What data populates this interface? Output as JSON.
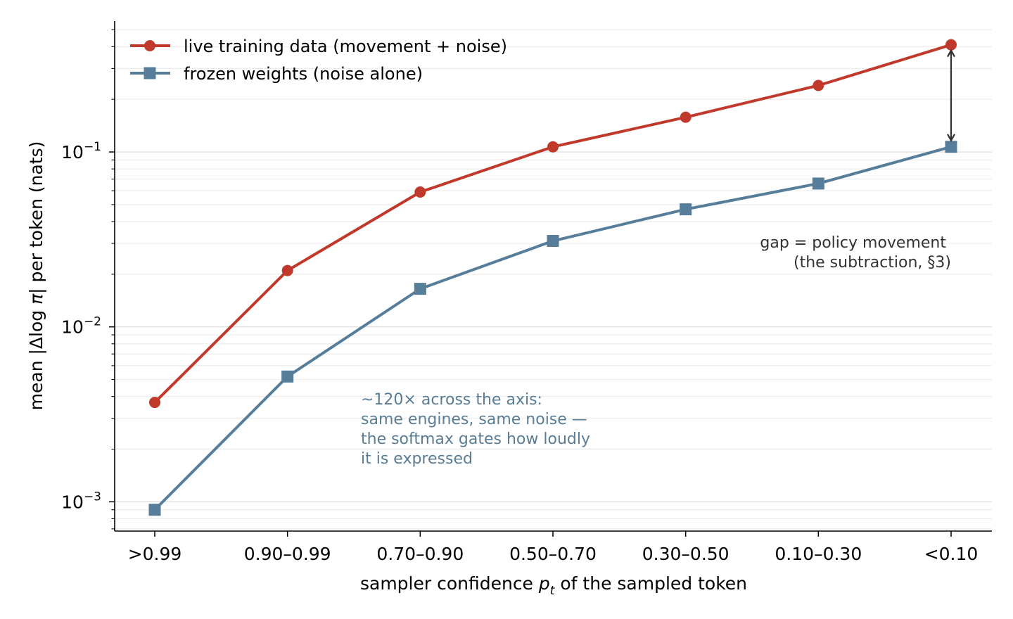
{
  "chart_data": {
    "type": "line",
    "categories": [
      ">0.99",
      "0.90–0.99",
      "0.70–0.90",
      "0.50–0.70",
      "0.30–0.50",
      "0.10–0.30",
      "<0.10"
    ],
    "series": [
      {
        "name": "live training data (movement + noise)",
        "color": "#c0392b",
        "marker": "circle",
        "values": [
          0.0037,
          0.021,
          0.059,
          0.107,
          0.158,
          0.24,
          0.41
        ]
      },
      {
        "name": "frozen weights (noise alone)",
        "color": "#567d9a",
        "marker": "square",
        "values": [
          0.0009,
          0.0052,
          0.0165,
          0.031,
          0.047,
          0.066,
          0.107
        ]
      }
    ],
    "xlabel": {
      "pre": "sampler confidence ",
      "var": "p",
      "sub": "t",
      "post": " of the sampled token"
    },
    "ylabel": {
      "pre": "mean |Δlog ",
      "var": "π",
      "post": "| per token (nats)"
    },
    "yscale": "log",
    "ylim": [
      0.00068,
      0.56
    ],
    "yticks": [
      {
        "value": 0.001,
        "base": "10",
        "exp": "−3"
      },
      {
        "value": 0.01,
        "base": "10",
        "exp": "−2"
      },
      {
        "value": 0.1,
        "base": "10",
        "exp": "−1"
      }
    ],
    "grid": "y-major-and-minor",
    "legend_position": "top-left",
    "annotations": {
      "gap": [
        "gap = policy movement",
        "(the subtraction, §3)"
      ],
      "note": [
        "~120× across the axis:",
        "same engines, same noise —",
        "the softmax gates how loudly",
        "it is expressed"
      ]
    }
  }
}
